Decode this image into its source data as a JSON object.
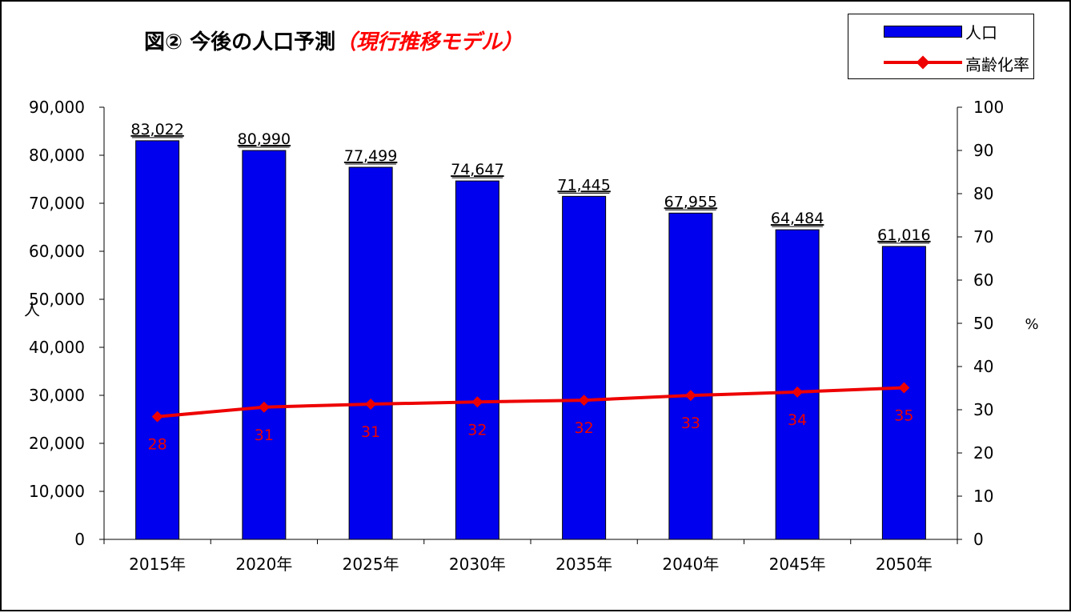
{
  "title": {
    "main": "図②  今後の人口予測",
    "sub": "（現行推移モデル）"
  },
  "legend": {
    "bar_label": "人口",
    "line_label": "高齢化率"
  },
  "colors": {
    "bar": "#0000ee",
    "line": "#ee0000",
    "line_label": "#ee0000"
  },
  "chart_data": {
    "type": "bar",
    "categories": [
      "2015年",
      "2020年",
      "2025年",
      "2030年",
      "2035年",
      "2040年",
      "2045年",
      "2050年"
    ],
    "series": [
      {
        "name": "人口",
        "type": "bar",
        "axis": "left",
        "values": [
          83022,
          80990,
          77499,
          74647,
          71445,
          67955,
          64484,
          61016
        ],
        "labels": [
          "83,022",
          "80,990",
          "77,499",
          "74,647",
          "71,445",
          "67,955",
          "64,484",
          "61,016"
        ]
      },
      {
        "name": "高齢化率",
        "type": "line",
        "axis": "right",
        "values": [
          28.4,
          30.6,
          31.3,
          31.8,
          32.2,
          33.3,
          34.1,
          35.1
        ],
        "labels": [
          "28",
          "31",
          "31",
          "32",
          "32",
          "33",
          "34",
          "35"
        ]
      }
    ],
    "ylabel": "人",
    "y2label": "%",
    "ylim": [
      0,
      90000
    ],
    "yticks": [
      "0",
      "10,000",
      "20,000",
      "30,000",
      "40,000",
      "50,000",
      "60,000",
      "70,000",
      "80,000",
      "90,000"
    ],
    "y2lim": [
      0,
      100
    ],
    "y2ticks": [
      "0",
      "10",
      "20",
      "30",
      "40",
      "50",
      "60",
      "70",
      "80",
      "90",
      "100"
    ],
    "grid": false,
    "legend_position": "top-right"
  }
}
